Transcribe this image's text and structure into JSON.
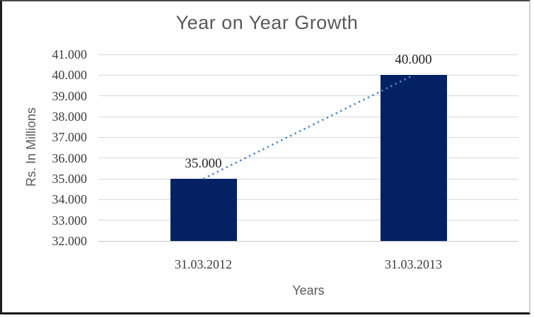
{
  "chart_data": {
    "type": "bar",
    "title": "Year on Year Growth",
    "xlabel": "Years",
    "ylabel": "Rs. In Millions",
    "categories": [
      "31.03.2012",
      "31.03.2013"
    ],
    "values": [
      35000,
      40000
    ],
    "data_labels": [
      "35.000",
      "40.000"
    ],
    "ylim": [
      32000,
      41000
    ],
    "y_tick_step": 1000,
    "y_tick_labels": [
      "32.000",
      "33.000",
      "34.000",
      "35.000",
      "36.000",
      "37.000",
      "38.000",
      "39.000",
      "40.000",
      "41.000"
    ],
    "grid": true,
    "legend": "none",
    "colors": {
      "bar": "#032163",
      "trendline": "#4f86c6",
      "gridline": "#d9d9d9",
      "axis_line": "#c9c9c9",
      "title_text": "#595959",
      "tick_text": "#3d3d3d",
      "data_label_text": "#212121"
    },
    "trendline": {
      "type": "linear",
      "style": "dotted"
    }
  }
}
